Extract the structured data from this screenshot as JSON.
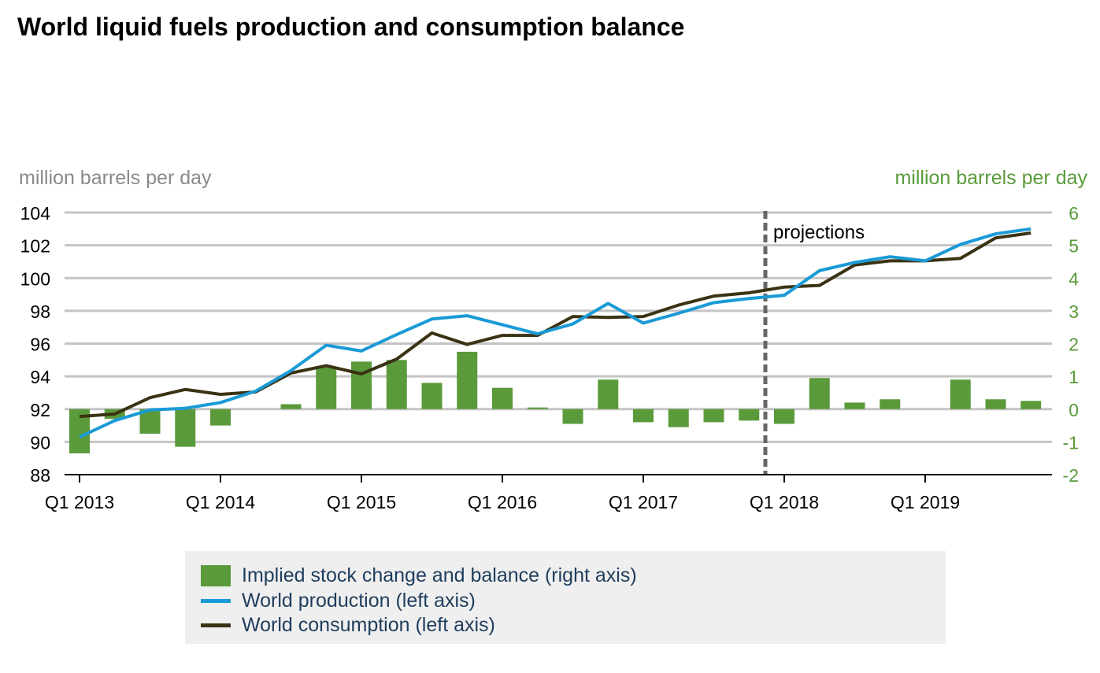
{
  "chart_data": {
    "type": "bar+line",
    "title": "World liquid fuels production and consumption balance",
    "ylabel_left": "million barrels per day",
    "ylabel_right": "million barrels per day",
    "ylim_left": [
      88,
      104
    ],
    "ylim_right": [
      -2,
      6
    ],
    "yticks_left": [
      104,
      102,
      100,
      98,
      96,
      94,
      92,
      90,
      88
    ],
    "yticks_right": [
      6,
      5,
      4,
      3,
      2,
      1,
      0,
      -1,
      -2
    ],
    "xtick_labels": [
      "Q1 2013",
      "Q1 2014",
      "Q1 2015",
      "Q1 2016",
      "Q1 2017",
      "Q1 2018",
      "Q1 2019"
    ],
    "grid": true,
    "projection_label": "projections",
    "projection_start": "Q1 2018",
    "x": [
      "Q1 2013",
      "Q2 2013",
      "Q3 2013",
      "Q4 2013",
      "Q1 2014",
      "Q2 2014",
      "Q3 2014",
      "Q4 2014",
      "Q1 2015",
      "Q2 2015",
      "Q3 2015",
      "Q4 2015",
      "Q1 2016",
      "Q2 2016",
      "Q3 2016",
      "Q4 2016",
      "Q1 2017",
      "Q2 2017",
      "Q3 2017",
      "Q4 2017",
      "Q1 2018",
      "Q2 2018",
      "Q3 2018",
      "Q4 2018",
      "Q1 2019",
      "Q2 2019",
      "Q3 2019",
      "Q4 2019"
    ],
    "series": [
      {
        "name": "Implied stock change and balance (right axis)",
        "type": "bar",
        "axis": "right",
        "color": "#5a9a3a",
        "values": [
          -1.35,
          -0.3,
          -0.75,
          -1.15,
          -0.5,
          0.0,
          0.15,
          1.3,
          1.45,
          1.5,
          0.8,
          1.75,
          0.65,
          0.05,
          -0.45,
          0.9,
          -0.4,
          -0.55,
          -0.4,
          -0.35,
          -0.45,
          0.95,
          0.2,
          0.3,
          0.0,
          0.9,
          0.3,
          0.25
        ]
      },
      {
        "name": "World production (left axis)",
        "type": "line",
        "axis": "left",
        "color": "#1a9ad6",
        "values": [
          90.3,
          91.3,
          91.95,
          92.05,
          92.4,
          93.1,
          94.35,
          95.9,
          95.55,
          96.55,
          97.5,
          97.7,
          97.15,
          96.6,
          97.2,
          98.45,
          97.25,
          97.85,
          98.5,
          98.75,
          98.95,
          100.45,
          100.95,
          101.3,
          101.05,
          102.05,
          102.7,
          103.0
        ]
      },
      {
        "name": "World consumption (left axis)",
        "type": "line",
        "axis": "left",
        "color": "#3b3214",
        "values": [
          91.55,
          91.7,
          92.7,
          93.2,
          92.9,
          93.05,
          94.2,
          94.65,
          94.15,
          95.05,
          96.65,
          95.95,
          96.5,
          96.5,
          97.65,
          97.6,
          97.65,
          98.35,
          98.9,
          99.1,
          99.45,
          99.55,
          100.8,
          101.05,
          101.05,
          101.2,
          102.45,
          102.75
        ]
      }
    ],
    "legend_position": "bottom"
  }
}
